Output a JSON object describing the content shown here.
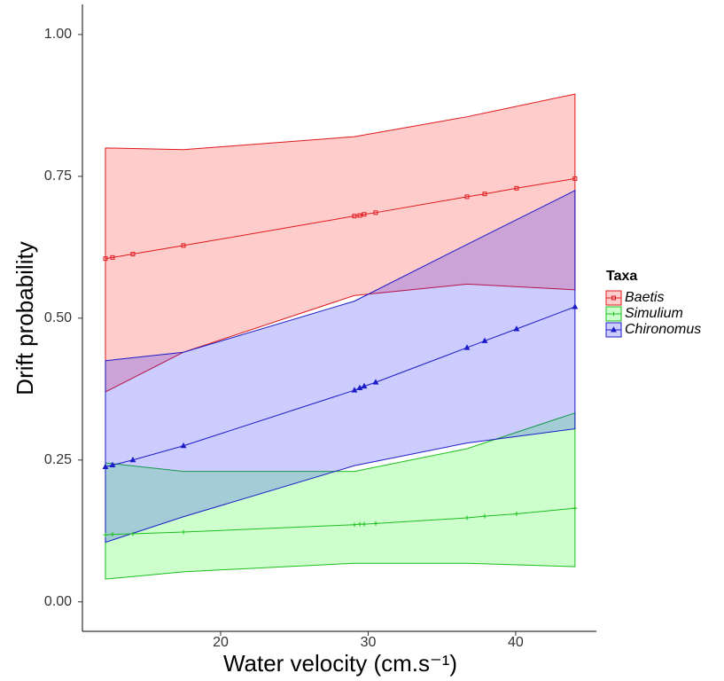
{
  "chart_data": {
    "type": "line",
    "xlabel": "Water velocity (cm.s⁻¹)",
    "ylabel": "Drift probability",
    "xlim": [
      10.63,
      45.47
    ],
    "ylim": [
      -0.052,
      1.053
    ],
    "xticks": [
      20,
      30,
      40
    ],
    "yticks": [
      {
        "value": 0,
        "label": "0.00"
      },
      {
        "value": 0.25,
        "label": "0.25"
      },
      {
        "value": 0.5,
        "label": "0.50"
      },
      {
        "value": 0.75,
        "label": "0.75"
      },
      {
        "value": 1,
        "label": "1.00"
      }
    ],
    "legend_title": "Taxa",
    "legend": "right",
    "x": [
      12.19,
      12.67,
      14.05,
      17.48,
      29.07,
      29.43,
      29.73,
      30.51,
      36.7,
      37.9,
      40.06,
      44.02
    ],
    "band_x": [
      12.19,
      17.48,
      29.07,
      36.7,
      44.02
    ],
    "series": [
      {
        "name": "Baetis",
        "color": "#e0181c",
        "fill": "#ff0000",
        "marker": "square",
        "values": [
          0.605,
          0.607,
          0.613,
          0.628,
          0.68,
          0.681,
          0.683,
          0.686,
          0.714,
          0.719,
          0.729,
          0.746
        ],
        "upper": [
          0.8,
          0.797,
          0.82,
          0.855,
          0.895
        ],
        "lower": [
          0.37,
          0.44,
          0.54,
          0.56,
          0.55
        ]
      },
      {
        "name": "Simulium",
        "color": "#1cbf1c",
        "fill": "#00ff00",
        "marker": "plus",
        "values": [
          0.118,
          0.119,
          0.12,
          0.123,
          0.136,
          0.137,
          0.137,
          0.138,
          0.148,
          0.151,
          0.155,
          0.165
        ],
        "upper": [
          0.245,
          0.23,
          0.23,
          0.27,
          0.333
        ],
        "lower": [
          0.04,
          0.053,
          0.068,
          0.068,
          0.062
        ]
      },
      {
        "name": "Chironomus",
        "color": "#1c1cc8",
        "fill": "#0000ff",
        "marker": "triangle",
        "values": [
          0.238,
          0.241,
          0.25,
          0.275,
          0.373,
          0.377,
          0.38,
          0.387,
          0.448,
          0.46,
          0.481,
          0.52
        ],
        "upper": [
          0.425,
          0.44,
          0.53,
          0.63,
          0.725
        ],
        "lower": [
          0.105,
          0.15,
          0.24,
          0.28,
          0.305
        ]
      }
    ]
  }
}
